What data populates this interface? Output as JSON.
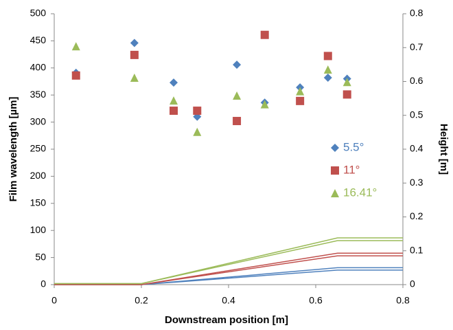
{
  "chart_data": {
    "type": "scatter",
    "xlabel": "Downstream position [m]",
    "ylabel": "Film wavelength [µm]",
    "y2label": "Height [m]",
    "xlim": [
      0,
      0.8
    ],
    "xticks": [
      0,
      0.2,
      0.4,
      0.6,
      0.8
    ],
    "ylim": [
      0,
      500
    ],
    "yticks": [
      0,
      50,
      100,
      150,
      200,
      250,
      300,
      350,
      400,
      450,
      500
    ],
    "y2lim": [
      0,
      0.8
    ],
    "y2ticks": [
      0,
      0.1,
      0.2,
      0.3,
      0.4,
      0.5,
      0.6,
      0.7,
      0.8
    ],
    "legend": "right",
    "series": [
      {
        "name": "5.5°",
        "color": "#4f81bd",
        "marker": "diamond",
        "x": [
          0.05,
          0.184,
          0.274,
          0.328,
          0.419,
          0.483,
          0.564,
          0.628,
          0.672
        ],
        "values": [
          391,
          446,
          373,
          310,
          406,
          336,
          364,
          382,
          380
        ]
      },
      {
        "name": "11°",
        "color": "#c0504d",
        "marker": "square",
        "x": [
          0.05,
          0.184,
          0.274,
          0.328,
          0.419,
          0.483,
          0.564,
          0.628,
          0.672
        ],
        "values": [
          386,
          424,
          321,
          321,
          302,
          461,
          339,
          422,
          351
        ]
      },
      {
        "name": "16.41°",
        "color": "#9bbb59",
        "marker": "triangle",
        "x": [
          0.05,
          0.184,
          0.274,
          0.328,
          0.419,
          0.483,
          0.564,
          0.628,
          0.672
        ],
        "values": [
          440,
          382,
          340,
          282,
          349,
          333,
          357,
          397,
          374
        ]
      },
      {
        "color": "#4f81bd",
        "style": "line",
        "axis": "y2",
        "x": [
          0,
          0.2,
          0.65,
          0.8
        ],
        "values": [
          0,
          0,
          0.05,
          0.05
        ]
      },
      {
        "color": "#4f81bd",
        "style": "line",
        "axis": "y2",
        "x": [
          0,
          0.2,
          0.65,
          0.8
        ],
        "values": [
          0,
          0,
          0.043,
          0.043
        ]
      },
      {
        "color": "#c0504d",
        "style": "line",
        "axis": "y2",
        "x": [
          0,
          0.2,
          0.65,
          0.8
        ],
        "values": [
          0,
          0,
          0.093,
          0.093
        ]
      },
      {
        "color": "#c0504d",
        "style": "line",
        "axis": "y2",
        "x": [
          0,
          0.2,
          0.65,
          0.8
        ],
        "values": [
          0,
          0,
          0.085,
          0.085
        ]
      },
      {
        "color": "#9bbb59",
        "style": "line",
        "axis": "y2",
        "x": [
          0,
          0.2,
          0.65,
          0.8
        ],
        "values": [
          0.003,
          0.003,
          0.138,
          0.138
        ]
      },
      {
        "color": "#9bbb59",
        "style": "line",
        "axis": "y2",
        "x": [
          0,
          0.2,
          0.65,
          0.8
        ],
        "values": [
          0.003,
          0.003,
          0.13,
          0.13
        ]
      }
    ]
  }
}
